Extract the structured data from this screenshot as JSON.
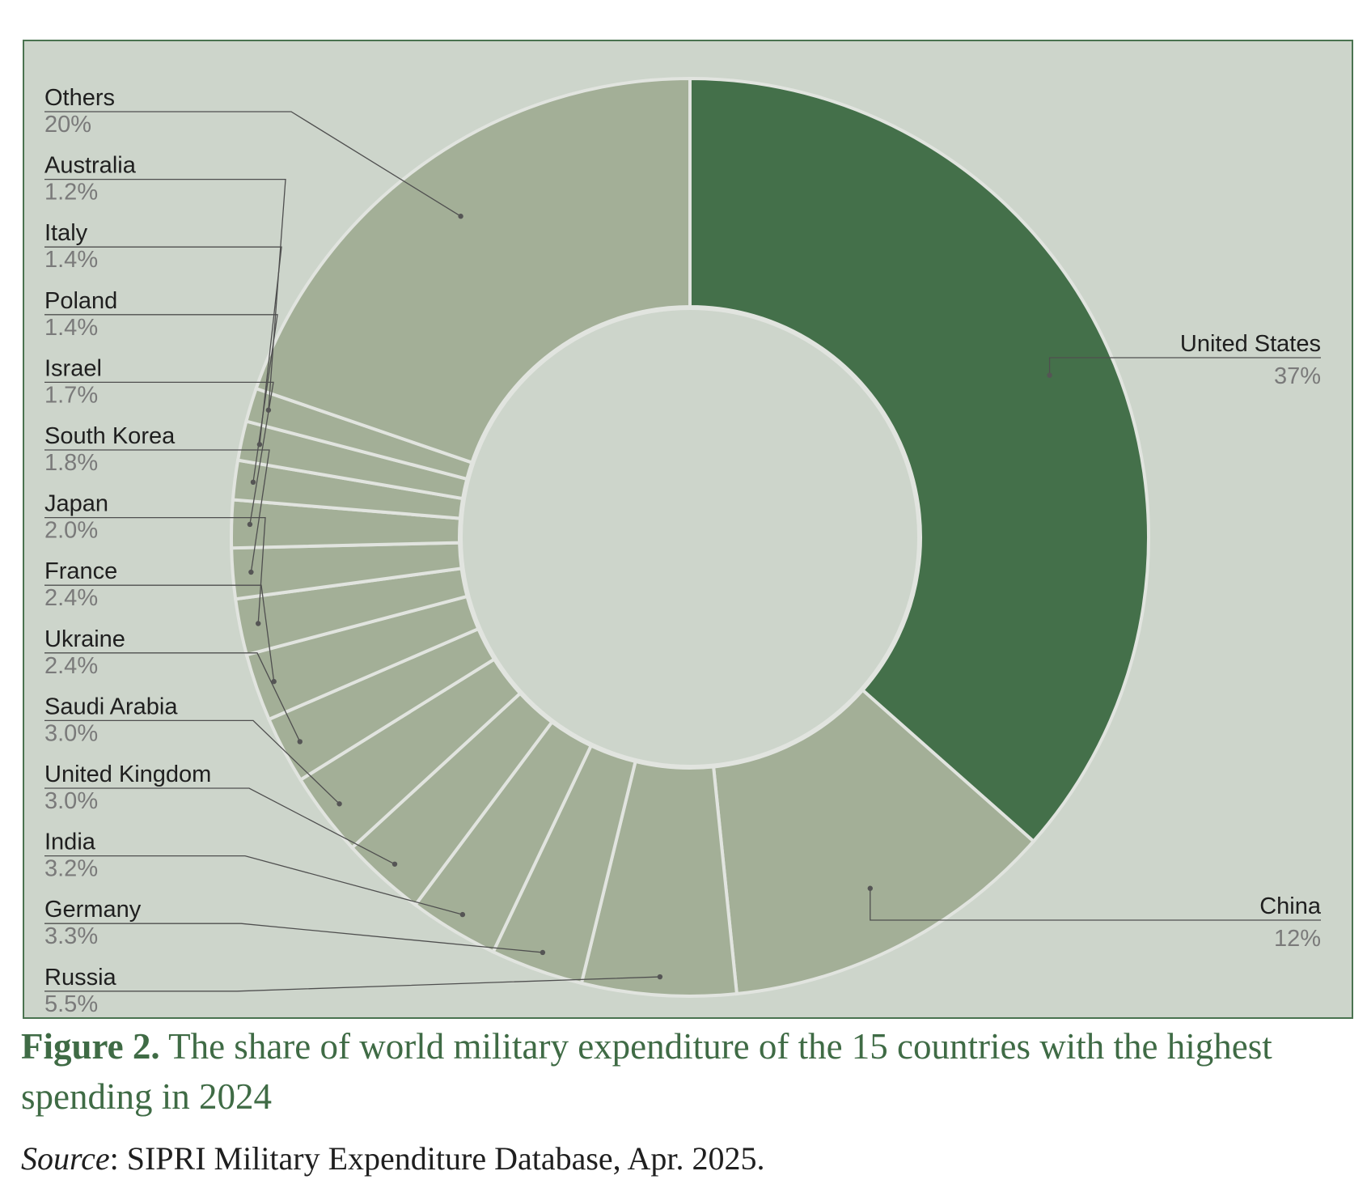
{
  "chart_data": {
    "type": "pie",
    "variant": "donut",
    "title": "Figure 2. The share of world military expenditure of the 15 countries with the highest spending in 2024",
    "slices": [
      {
        "label": "United States",
        "value": 37,
        "value_label": "37%",
        "color": "#44704a"
      },
      {
        "label": "China",
        "value": 12,
        "value_label": "12%",
        "color": "#a3af97"
      },
      {
        "label": "Russia",
        "value": 5.5,
        "value_label": "5.5%",
        "color": "#a3af97"
      },
      {
        "label": "Germany",
        "value": 3.3,
        "value_label": "3.3%",
        "color": "#a3af97"
      },
      {
        "label": "India",
        "value": 3.2,
        "value_label": "3.2%",
        "color": "#a3af97"
      },
      {
        "label": "United Kingdom",
        "value": 3.0,
        "value_label": "3.0%",
        "color": "#a3af97"
      },
      {
        "label": "Saudi Arabia",
        "value": 3.0,
        "value_label": "3.0%",
        "color": "#a3af97"
      },
      {
        "label": "Ukraine",
        "value": 2.4,
        "value_label": "2.4%",
        "color": "#a3af97"
      },
      {
        "label": "France",
        "value": 2.4,
        "value_label": "2.4%",
        "color": "#a3af97"
      },
      {
        "label": "Japan",
        "value": 2.0,
        "value_label": "2.0%",
        "color": "#a3af97"
      },
      {
        "label": "South Korea",
        "value": 1.8,
        "value_label": "1.8%",
        "color": "#a3af97"
      },
      {
        "label": "Israel",
        "value": 1.7,
        "value_label": "1.7%",
        "color": "#a3af97"
      },
      {
        "label": "Poland",
        "value": 1.4,
        "value_label": "1.4%",
        "color": "#a3af97"
      },
      {
        "label": "Italy",
        "value": 1.4,
        "value_label": "1.4%",
        "color": "#a3af97"
      },
      {
        "label": "Australia",
        "value": 1.2,
        "value_label": "1.2%",
        "color": "#a3af97"
      },
      {
        "label": "Others",
        "value": 20,
        "value_label": "20%",
        "color": "#a3af97"
      }
    ]
  },
  "caption": {
    "figure_label": "Figure 2.",
    "text": "The share of world military expenditure of the 15 countries with the highest spending in 2024"
  },
  "source": {
    "label": "Source",
    "text": ": SIPRI Military Expenditure Database, Apr. 2025."
  },
  "colors": {
    "frame_background": "#cdd5cb",
    "accent": "#44704a",
    "slice_default": "#a3af97",
    "caption_text": "#3f6b45"
  }
}
